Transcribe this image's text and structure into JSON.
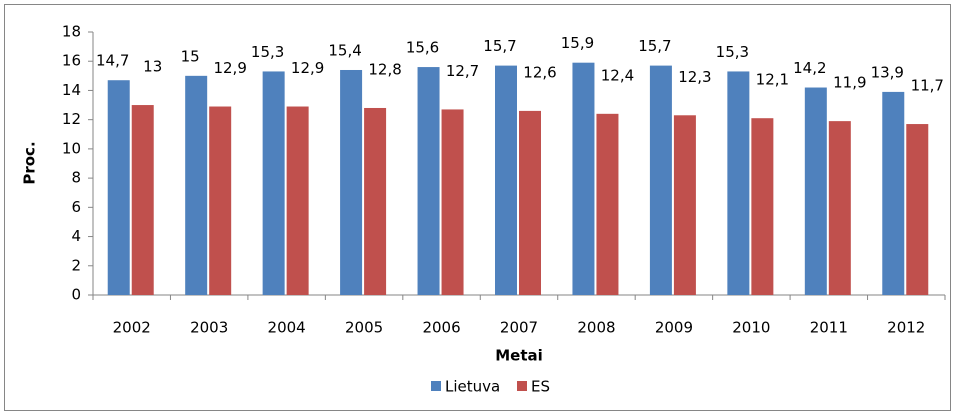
{
  "chart_data": {
    "type": "bar",
    "categories": [
      "2002",
      "2003",
      "2004",
      "2005",
      "2006",
      "2007",
      "2008",
      "2009",
      "2010",
      "2011",
      "2012"
    ],
    "series": [
      {
        "name": "Lietuva",
        "color": "#4f81bd",
        "values": [
          14.7,
          15,
          15.3,
          15.4,
          15.6,
          15.7,
          15.9,
          15.7,
          15.3,
          14.2,
          13.9
        ],
        "value_labels": [
          "14,7",
          "15",
          "15,3",
          "15,4",
          "15,6",
          "15,7",
          "15,9",
          "15,7",
          "15,3",
          "14,2",
          "13,9"
        ]
      },
      {
        "name": "ES",
        "color": "#c0504d",
        "values": [
          13,
          12.9,
          12.9,
          12.8,
          12.7,
          12.6,
          12.4,
          12.3,
          12.1,
          11.9,
          11.7
        ],
        "value_labels": [
          "13",
          "12,9",
          "12,9",
          "12,8",
          "12,7",
          "12,6",
          "12,4",
          "12,3",
          "12,1",
          "11,9",
          "11,7"
        ]
      }
    ],
    "x_label": "Metai",
    "y_label": "Proc.",
    "ylim": [
      0,
      18
    ],
    "yticks": [
      0,
      2,
      4,
      6,
      8,
      10,
      12,
      14,
      16,
      18
    ],
    "grid": false,
    "legend": "bottom"
  }
}
